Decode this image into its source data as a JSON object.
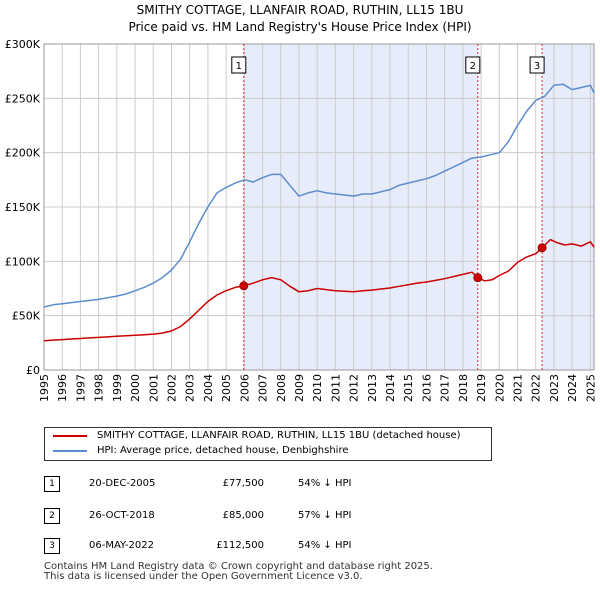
{
  "title": "SMITHY COTTAGE, LLANFAIR ROAD, RUTHIN, LL15 1BU",
  "subtitle": "Price paid vs. HM Land Registry's House Price Index (HPI)",
  "colors": {
    "red": "#cc0000",
    "blue": "#5b8ccc",
    "shade": "#e6ecfa",
    "grid": "#cccccc"
  },
  "chart_data": {
    "type": "line",
    "title": "SMITHY COTTAGE, LLANFAIR ROAD, RUTHIN, LL15 1BU",
    "subtitle": "Price paid vs. HM Land Registry's House Price Index (HPI)",
    "xlim": [
      1995,
      2025.2
    ],
    "ylim": [
      0,
      300000
    ],
    "ytick_values": [
      0,
      50000,
      100000,
      150000,
      200000,
      250000,
      300000
    ],
    "ytick_labels": [
      "£0",
      "£50K",
      "£100K",
      "£150K",
      "£200K",
      "£250K",
      "£300K"
    ],
    "xtick_values": [
      1995,
      1996,
      1997,
      1998,
      1999,
      2000,
      2001,
      2002,
      2003,
      2004,
      2005,
      2006,
      2007,
      2008,
      2009,
      2010,
      2011,
      2012,
      2013,
      2014,
      2015,
      2016,
      2017,
      2018,
      2019,
      2020,
      2021,
      2022,
      2023,
      2024,
      2025
    ],
    "xtick_labels": [
      "1995",
      "1996",
      "1997",
      "1998",
      "1999",
      "2000",
      "2001",
      "2002",
      "2003",
      "2004",
      "2005",
      "2006",
      "2007",
      "2008",
      "2009",
      "2010",
      "2011",
      "2012",
      "2013",
      "2014",
      "2015",
      "2016",
      "2017",
      "2018",
      "2019",
      "2020",
      "2021",
      "2022",
      "2023",
      "2024",
      "2025"
    ],
    "grid": true,
    "shaded_ranges": [
      [
        2005.97,
        2018.82
      ],
      [
        2022.35,
        2025.2
      ]
    ],
    "series": [
      {
        "name": "SMITHY COTTAGE, LLANFAIR ROAD, RUTHIN, LL15 1BU (detached house)",
        "color": "#cc0000",
        "x": [
          1995.0,
          1995.5,
          1996.0,
          1996.5,
          1997.0,
          1997.5,
          1998.0,
          1998.5,
          1999.0,
          1999.5,
          2000.0,
          2000.5,
          2001.0,
          2001.5,
          2002.0,
          2002.5,
          2003.0,
          2003.5,
          2004.0,
          2004.5,
          2005.0,
          2005.5,
          2005.97,
          2006.5,
          2007.0,
          2007.5,
          2008.0,
          2008.5,
          2009.0,
          2009.5,
          2010.0,
          2010.5,
          2011.0,
          2011.5,
          2012.0,
          2012.5,
          2013.0,
          2013.5,
          2014.0,
          2014.5,
          2015.0,
          2015.5,
          2016.0,
          2016.5,
          2017.0,
          2017.5,
          2018.0,
          2018.5,
          2018.82,
          2019.2,
          2019.6,
          2020.0,
          2020.5,
          2021.0,
          2021.5,
          2022.0,
          2022.35,
          2022.8,
          2023.2,
          2023.6,
          2024.0,
          2024.5,
          2025.0,
          2025.2
        ],
        "y": [
          27000,
          27500,
          28000,
          28500,
          29000,
          29500,
          30000,
          30500,
          31000,
          31500,
          32000,
          32500,
          33000,
          34000,
          36000,
          40000,
          47000,
          55000,
          63000,
          69000,
          73000,
          76000,
          77500,
          80000,
          83000,
          85000,
          83000,
          77000,
          72000,
          73000,
          75000,
          74000,
          73000,
          72500,
          72000,
          73000,
          73500,
          74500,
          75500,
          77000,
          78500,
          80000,
          81000,
          82500,
          84000,
          86000,
          88000,
          90000,
          85000,
          82000,
          83000,
          87000,
          91000,
          99000,
          104000,
          107000,
          112500,
          120000,
          117000,
          115000,
          116000,
          114000,
          118000,
          113000
        ]
      },
      {
        "name": "HPI: Average price, detached house, Denbighshire",
        "color": "#5b8ccc",
        "x": [
          1995.0,
          1995.5,
          1996.0,
          1996.5,
          1997.0,
          1997.5,
          1998.0,
          1998.5,
          1999.0,
          1999.5,
          2000.0,
          2000.5,
          2001.0,
          2001.5,
          2002.0,
          2002.5,
          2003.0,
          2003.5,
          2004.0,
          2004.5,
          2005.0,
          2005.5,
          2006.0,
          2006.5,
          2007.0,
          2007.5,
          2008.0,
          2008.5,
          2009.0,
          2009.5,
          2010.0,
          2010.5,
          2011.0,
          2011.5,
          2012.0,
          2012.5,
          2013.0,
          2013.5,
          2014.0,
          2014.5,
          2015.0,
          2015.5,
          2016.0,
          2016.5,
          2017.0,
          2017.5,
          2018.0,
          2018.5,
          2019.0,
          2019.5,
          2020.0,
          2020.5,
          2021.0,
          2021.5,
          2022.0,
          2022.5,
          2023.0,
          2023.5,
          2024.0,
          2024.5,
          2025.0,
          2025.2
        ],
        "y": [
          58000,
          60000,
          61000,
          62000,
          63000,
          64000,
          65000,
          66500,
          68000,
          70000,
          73000,
          76000,
          80000,
          85000,
          92000,
          102000,
          118000,
          135000,
          150000,
          163000,
          168000,
          172000,
          175000,
          173000,
          177000,
          180000,
          180000,
          170000,
          160000,
          163000,
          165000,
          163000,
          162000,
          161000,
          160000,
          162000,
          162000,
          164000,
          166000,
          170000,
          172000,
          174000,
          176000,
          179000,
          183000,
          187000,
          191000,
          195000,
          196000,
          198000,
          200000,
          210000,
          225000,
          238000,
          248000,
          252000,
          262000,
          263000,
          258000,
          260000,
          262000,
          255000
        ]
      }
    ],
    "markers": [
      {
        "label": "1",
        "x": 2005.97,
        "y": 77500
      },
      {
        "label": "2",
        "x": 2018.82,
        "y": 85000
      },
      {
        "label": "3",
        "x": 2022.35,
        "y": 112500
      }
    ]
  },
  "legend": {
    "items": [
      {
        "label": "SMITHY COTTAGE, LLANFAIR ROAD, RUTHIN, LL15 1BU (detached house)",
        "color": "#cc0000"
      },
      {
        "label": "HPI: Average price, detached house, Denbighshire",
        "color": "#5b8ccc"
      }
    ]
  },
  "transactions": [
    {
      "num": "1",
      "date": "20-DEC-2005",
      "price": "£77,500",
      "hpi": "54% ↓ HPI"
    },
    {
      "num": "2",
      "date": "26-OCT-2018",
      "price": "£85,000",
      "hpi": "57% ↓ HPI"
    },
    {
      "num": "3",
      "date": "06-MAY-2022",
      "price": "£112,500",
      "hpi": "54% ↓ HPI"
    }
  ],
  "footer": {
    "line1": "Contains HM Land Registry data © Crown copyright and database right 2025.",
    "line2": "This data is licensed under the Open Government Licence v3.0."
  }
}
